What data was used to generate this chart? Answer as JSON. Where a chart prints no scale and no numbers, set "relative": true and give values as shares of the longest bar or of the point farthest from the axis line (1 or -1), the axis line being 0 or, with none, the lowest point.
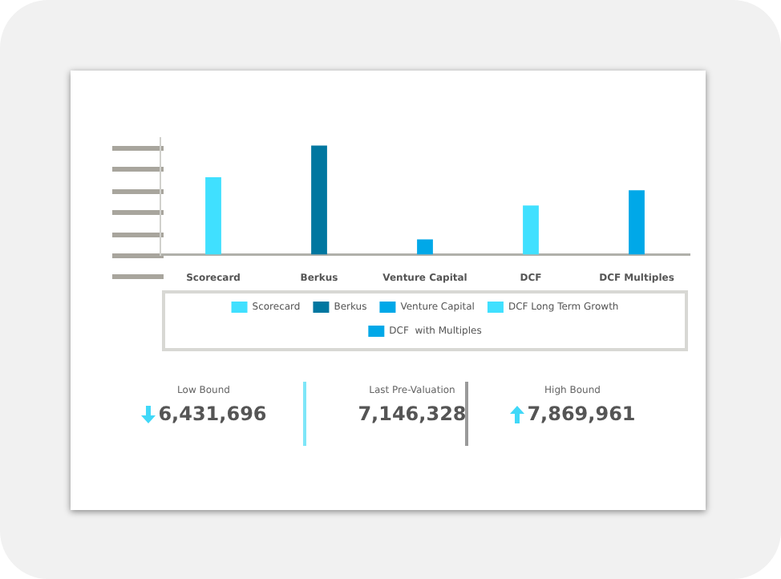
{
  "chart_data": {
    "type": "bar",
    "relative": true,
    "categories": [
      "Scorecard",
      "Berkus",
      "Venture Capital",
      "DCF",
      "DCF Multiples"
    ],
    "series": [
      {
        "name": "Scorecard",
        "color": "#40e0ff",
        "values": [
          0.71,
          null,
          null,
          null,
          null
        ]
      },
      {
        "name": "Berkus",
        "color": "#0077a0",
        "values": [
          null,
          1,
          null,
          null,
          null
        ]
      },
      {
        "name": "Venture Capital",
        "color": "#00a8e8",
        "values": [
          null,
          null,
          0.14,
          null,
          null
        ]
      },
      {
        "name": "DCF Long Term Growth",
        "color": "#40e0ff",
        "values": [
          null,
          null,
          null,
          0.45,
          null
        ]
      },
      {
        "name": "DCF  with Multiples",
        "color": "#00a8e8",
        "values": [
          null,
          null,
          null,
          null,
          0.59
        ]
      }
    ],
    "legend": "bottom",
    "grid": false,
    "annotations": [
      "Low Bound",
      "6,431,696",
      "Last Pre-Valuation",
      "7,146,328",
      "High Bound",
      "7,869,961"
    ]
  }
}
